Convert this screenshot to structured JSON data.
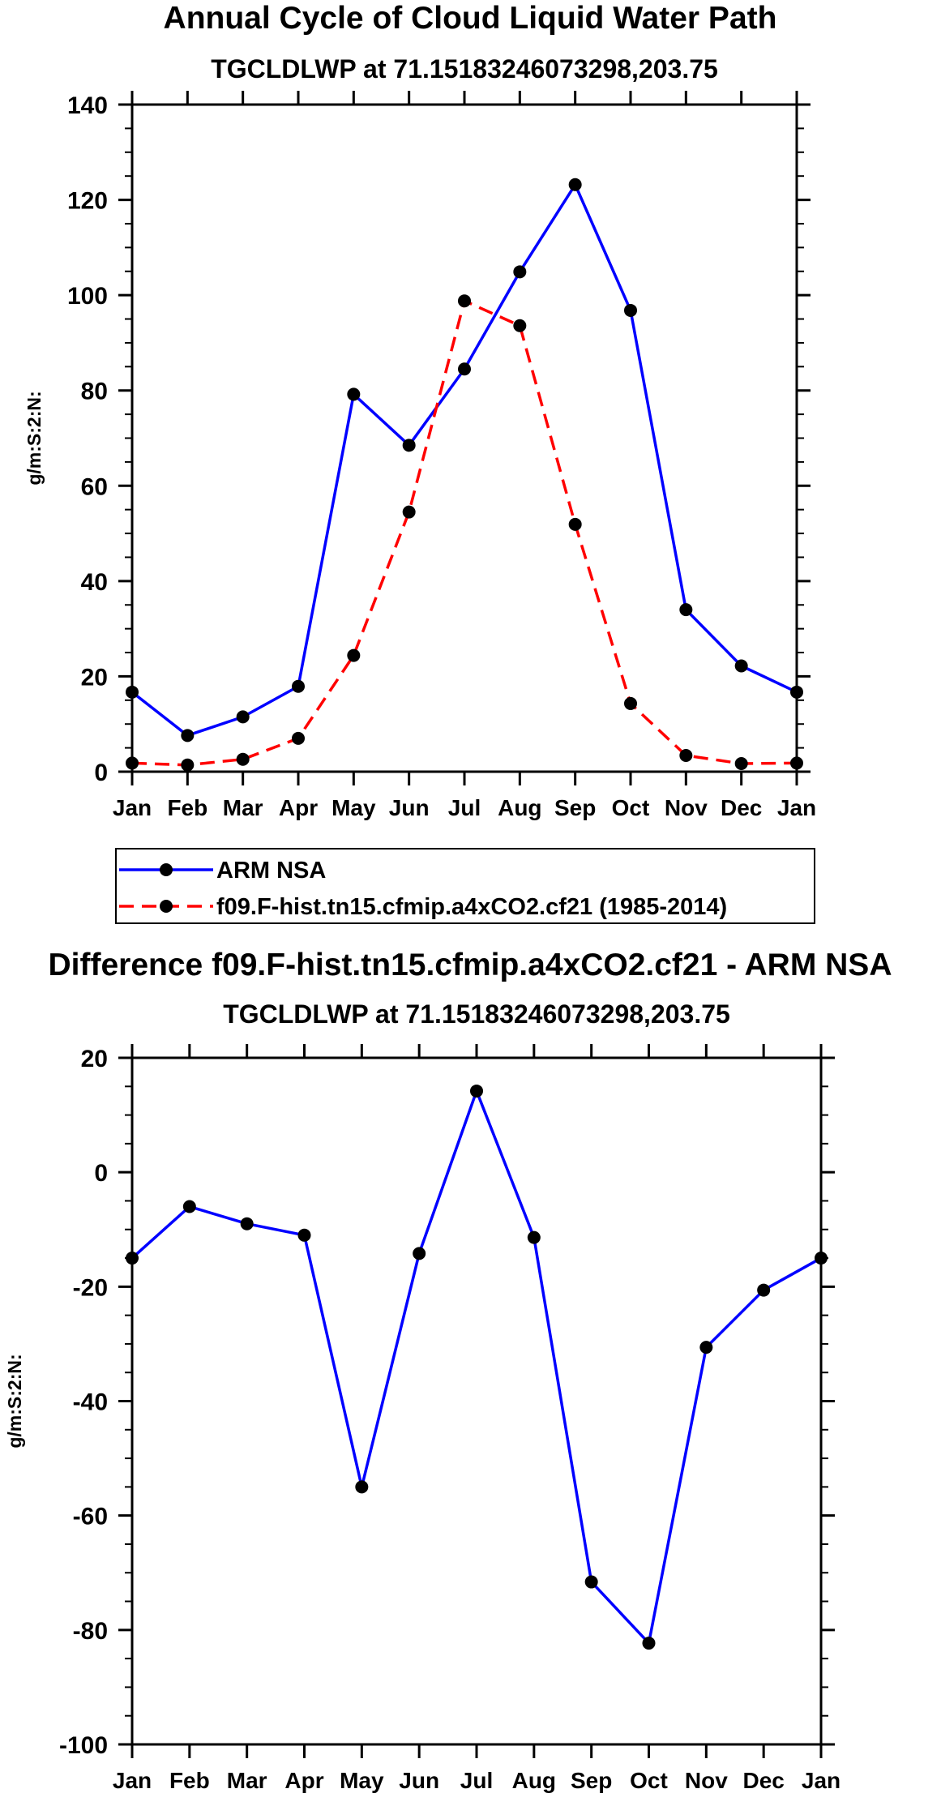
{
  "chart_data": [
    {
      "type": "line",
      "title": "Annual Cycle of Cloud Liquid Water Path",
      "subtitle": "TGCLDLWP at 71.15183246073298,203.75",
      "xlabel": "",
      "ylabel": "g/m:S:2:N:",
      "categories": [
        "Jan",
        "Feb",
        "Mar",
        "Apr",
        "May",
        "Jun",
        "Jul",
        "Aug",
        "Sep",
        "Oct",
        "Nov",
        "Dec",
        "Jan"
      ],
      "ylim": [
        0,
        140
      ],
      "yticks": [
        0,
        20,
        40,
        60,
        80,
        100,
        120,
        140
      ],
      "series": [
        {
          "name": "ARM NSA",
          "color": "#0000ff",
          "dash": "solid",
          "values": [
            16.7,
            7.6,
            11.5,
            17.9,
            79.2,
            68.5,
            84.5,
            104.9,
            123.2,
            96.8,
            34.0,
            22.2,
            16.7
          ]
        },
        {
          "name": "f09.F-hist.tn15.cfmip.a4xCO2.cf21 (1985-2014)",
          "color": "#ff0000",
          "dash": "dashed",
          "values": [
            1.8,
            1.4,
            2.6,
            7.0,
            24.4,
            54.5,
            98.8,
            93.6,
            51.9,
            14.3,
            3.4,
            1.7,
            1.8
          ]
        }
      ],
      "legend": {
        "position": "bottom",
        "entries": [
          "ARM NSA",
          "f09.F-hist.tn15.cfmip.a4xCO2.cf21 (1985-2014)"
        ]
      },
      "grid": false
    },
    {
      "type": "line",
      "title": "Difference f09.F-hist.tn15.cfmip.a4xCO2.cf21 - ARM NSA",
      "subtitle": "TGCLDLWP at 71.15183246073298,203.75",
      "xlabel": "",
      "ylabel": "g/m:S:2:N:",
      "categories": [
        "Jan",
        "Feb",
        "Mar",
        "Apr",
        "May",
        "Jun",
        "Jul",
        "Aug",
        "Sep",
        "Oct",
        "Nov",
        "Dec",
        "Jan"
      ],
      "ylim": [
        -100,
        20
      ],
      "yticks": [
        -100,
        -80,
        -60,
        -40,
        -20,
        0,
        20
      ],
      "series": [
        {
          "name": "Difference",
          "color": "#0000ff",
          "dash": "solid",
          "values": [
            -15.0,
            -6.0,
            -9.0,
            -11.0,
            -55.0,
            -14.2,
            14.2,
            -11.4,
            -71.6,
            -82.3,
            -30.6,
            -20.6,
            -15.0
          ]
        }
      ],
      "grid": false
    }
  ]
}
